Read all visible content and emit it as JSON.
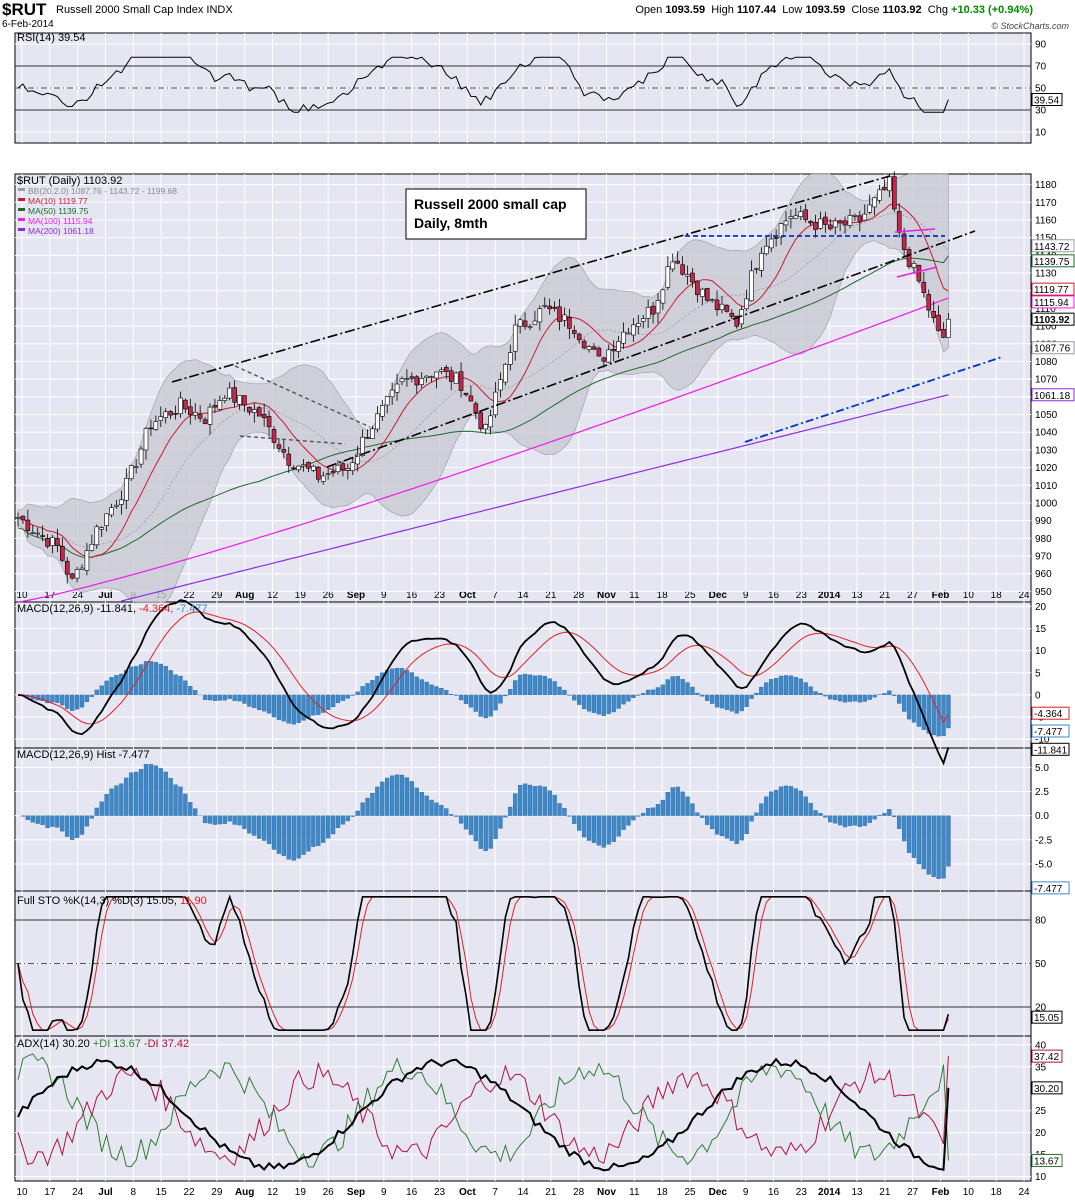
{
  "header": {
    "symbol": "$RUT",
    "name": "Russell 2000 Small Cap Index",
    "exchange": "INDX",
    "date": "6-Feb-2014",
    "open_label": "Open",
    "open": "1093.59",
    "high_label": "High",
    "high": "1107.44",
    "low_label": "Low",
    "low": "1093.59",
    "close_label": "Close",
    "close": "1103.92",
    "chg_label": "Chg",
    "chg": "+10.33 (+0.94%)",
    "watermark": "© StockCharts.com"
  },
  "colors": {
    "panel_bg": "#e6e6f3",
    "grid": "#ffffff",
    "up": "#ffffff",
    "down": "#c4274b",
    "ma10": "#cc1b2c",
    "ma50": "#1f6a2a",
    "ma100": "#ee1ce4",
    "ma200": "#8a2be2",
    "bb_fill": "#c9c9d3",
    "macd_hist": "#3e88c8",
    "trend_blue": "#0033cc"
  },
  "annotation": {
    "line1": "Russell 2000 small cap",
    "line2": "Daily, 8mth"
  },
  "panels": {
    "rsi": {
      "title": "RSI(14) 39.54",
      "ticks": [
        "90",
        "70",
        "50",
        "30",
        "10"
      ],
      "value_label": "39.54"
    },
    "price": {
      "title": "$RUT (Daily) 1103.92",
      "legend": [
        {
          "label": "BB(20,2.0) 1087.76 - 1143.72 - 1199.68",
          "color": "#9a9aa5"
        },
        {
          "label": "MA(10) 1119.77",
          "color": "#cc1b2c"
        },
        {
          "label": "MA(50) 1139.75",
          "color": "#1f6a2a"
        },
        {
          "label": "MA(100) 1115.94",
          "color": "#ee1ce4"
        },
        {
          "label": "MA(200) 1061.18",
          "color": "#8a2be2"
        }
      ],
      "ticks": [
        "1180",
        "1170",
        "1160",
        "1150",
        "1140",
        "1130",
        "1120",
        "1110",
        "1100",
        "1090",
        "1080",
        "1070",
        "1060",
        "1050",
        "1040",
        "1030",
        "1020",
        "1010",
        "1000",
        "990",
        "980",
        "970",
        "960",
        "950"
      ],
      "tags": [
        "1143.72",
        "1139.75",
        "1115.94",
        "1119.77",
        "1103.92",
        "1087.76",
        "1061.18"
      ]
    },
    "macd": {
      "title": "MACD(12,26,9) -11.841, -4.364, -7.477",
      "title_parts": [
        "MACD(12,26,9)",
        "-11.841,",
        "-4.364,",
        "-7.477"
      ],
      "ticks": [
        "20",
        "15",
        "10",
        "5",
        "0",
        "-5",
        "-10"
      ],
      "tags": [
        "-4.364",
        "-7.477",
        "-11.841"
      ]
    },
    "hist": {
      "title": "MACD(12,26,9) Hist -7.477",
      "ticks": [
        "5.0",
        "2.5",
        "0.0",
        "-2.5",
        "-5.0"
      ],
      "tag": "-7.477"
    },
    "sto": {
      "title": "Full STO %K(14,3) %D(3) 15.05, 11.90",
      "title_parts": [
        "Full STO %K(14,3) %D(3) 15.05,",
        "11.90"
      ],
      "ticks": [
        "80",
        "50",
        "20"
      ],
      "tag": "15.05"
    },
    "adx": {
      "title": "ADX(14) 30.20 +DI 13.67 -DI 37.42",
      "title_parts": [
        "ADX(14) 30.20",
        "+DI 13.67",
        "-DI 37.42"
      ],
      "ticks": [
        "40",
        "35",
        "25",
        "20",
        "15",
        "10"
      ],
      "tags": [
        "37.42",
        "30.20",
        "13.67"
      ]
    }
  },
  "x_axis": {
    "labels": [
      "10",
      "17",
      "24",
      "Jul",
      "8",
      "15",
      "22",
      "29",
      "Aug",
      "12",
      "19",
      "26",
      "Sep",
      "9",
      "16",
      "23",
      "Oct",
      "7",
      "14",
      "21",
      "28",
      "Nov",
      "11",
      "18",
      "25",
      "Dec",
      "9",
      "16",
      "23",
      "2014",
      "13",
      "21",
      "27",
      "Feb",
      "10",
      "18",
      "24"
    ],
    "bold": [
      "Jul",
      "Aug",
      "Sep",
      "Oct",
      "Nov",
      "Dec",
      "2014",
      "Feb"
    ]
  },
  "chart_data": [
    {
      "type": "candlestick",
      "title": "$RUT (Daily) 1103.92",
      "period": "Jun 2013 - 6 Feb 2014",
      "ylim": [
        944,
        1186
      ],
      "ohlc_anchors": [
        {
          "date": "2013-06-10",
          "close": 992
        },
        {
          "date": "2013-06-20",
          "close": 975
        },
        {
          "date": "2013-06-24",
          "close": 955
        },
        {
          "date": "2013-07-01",
          "close": 985
        },
        {
          "date": "2013-07-08",
          "close": 1010
        },
        {
          "date": "2013-07-15",
          "close": 1045
        },
        {
          "date": "2013-07-22",
          "close": 1055
        },
        {
          "date": "2013-07-29",
          "close": 1048
        },
        {
          "date": "2013-08-02",
          "close": 1063
        },
        {
          "date": "2013-08-12",
          "close": 1050
        },
        {
          "date": "2013-08-19",
          "close": 1025
        },
        {
          "date": "2013-08-27",
          "close": 1015
        },
        {
          "date": "2013-09-03",
          "close": 1020
        },
        {
          "date": "2013-09-09",
          "close": 1040
        },
        {
          "date": "2013-09-18",
          "close": 1068
        },
        {
          "date": "2013-09-26",
          "close": 1075
        },
        {
          "date": "2013-10-03",
          "close": 1068
        },
        {
          "date": "2013-10-09",
          "close": 1040
        },
        {
          "date": "2013-10-17",
          "close": 1098
        },
        {
          "date": "2013-10-25",
          "close": 1110
        },
        {
          "date": "2013-11-01",
          "close": 1100
        },
        {
          "date": "2013-11-07",
          "close": 1080
        },
        {
          "date": "2013-11-15",
          "close": 1100
        },
        {
          "date": "2013-11-22",
          "close": 1110
        },
        {
          "date": "2013-11-27",
          "close": 1140
        },
        {
          "date": "2013-12-05",
          "close": 1115
        },
        {
          "date": "2013-12-13",
          "close": 1102
        },
        {
          "date": "2013-12-20",
          "close": 1145
        },
        {
          "date": "2013-12-27",
          "close": 1163
        },
        {
          "date": "2014-01-06",
          "close": 1155
        },
        {
          "date": "2014-01-14",
          "close": 1160
        },
        {
          "date": "2014-01-22",
          "close": 1180
        },
        {
          "date": "2014-01-24",
          "close": 1150
        },
        {
          "date": "2014-01-29",
          "close": 1125
        },
        {
          "date": "2014-02-03",
          "close": 1095
        },
        {
          "date": "2014-02-05",
          "close": 1093.59
        },
        {
          "date": "2014-02-06",
          "open": 1093.59,
          "high": 1107.44,
          "low": 1093.59,
          "close": 1103.92
        }
      ],
      "series": [
        {
          "name": "MA(10)",
          "last": 1119.77
        },
        {
          "name": "MA(50)",
          "last": 1139.75
        },
        {
          "name": "MA(100)",
          "last": 1115.94
        },
        {
          "name": "MA(200)",
          "last": 1061.18
        },
        {
          "name": "BB(20,2.0)",
          "lower": 1087.76,
          "middle": 1143.72,
          "upper": 1199.68
        }
      ]
    },
    {
      "type": "line",
      "title": "RSI(14)",
      "ylim": [
        0,
        100
      ],
      "series": [
        {
          "name": "RSI(14)",
          "last": 39.54
        }
      ]
    },
    {
      "type": "line",
      "title": "MACD(12,26,9)",
      "ylim": [
        -12,
        21
      ],
      "series": [
        {
          "name": "MACD",
          "last": -11.841
        },
        {
          "name": "Signal",
          "last": -4.364
        },
        {
          "name": "Hist",
          "last": -7.477
        }
      ]
    },
    {
      "type": "bar",
      "title": "MACD(12,26,9) Hist",
      "ylim": [
        -7.8,
        7
      ],
      "series": [
        {
          "name": "Hist",
          "last": -7.477
        }
      ]
    },
    {
      "type": "line",
      "title": "Full STO %K(14,3) %D(3)",
      "ylim": [
        0,
        100
      ],
      "series": [
        {
          "name": "%K",
          "last": 15.05
        },
        {
          "name": "%D",
          "last": 11.9
        }
      ]
    },
    {
      "type": "line",
      "title": "ADX(14)",
      "ylim": [
        9,
        42
      ],
      "series": [
        {
          "name": "ADX",
          "last": 30.2
        },
        {
          "name": "+DI",
          "last": 13.67
        },
        {
          "name": "-DI",
          "last": 37.42
        }
      ]
    }
  ]
}
